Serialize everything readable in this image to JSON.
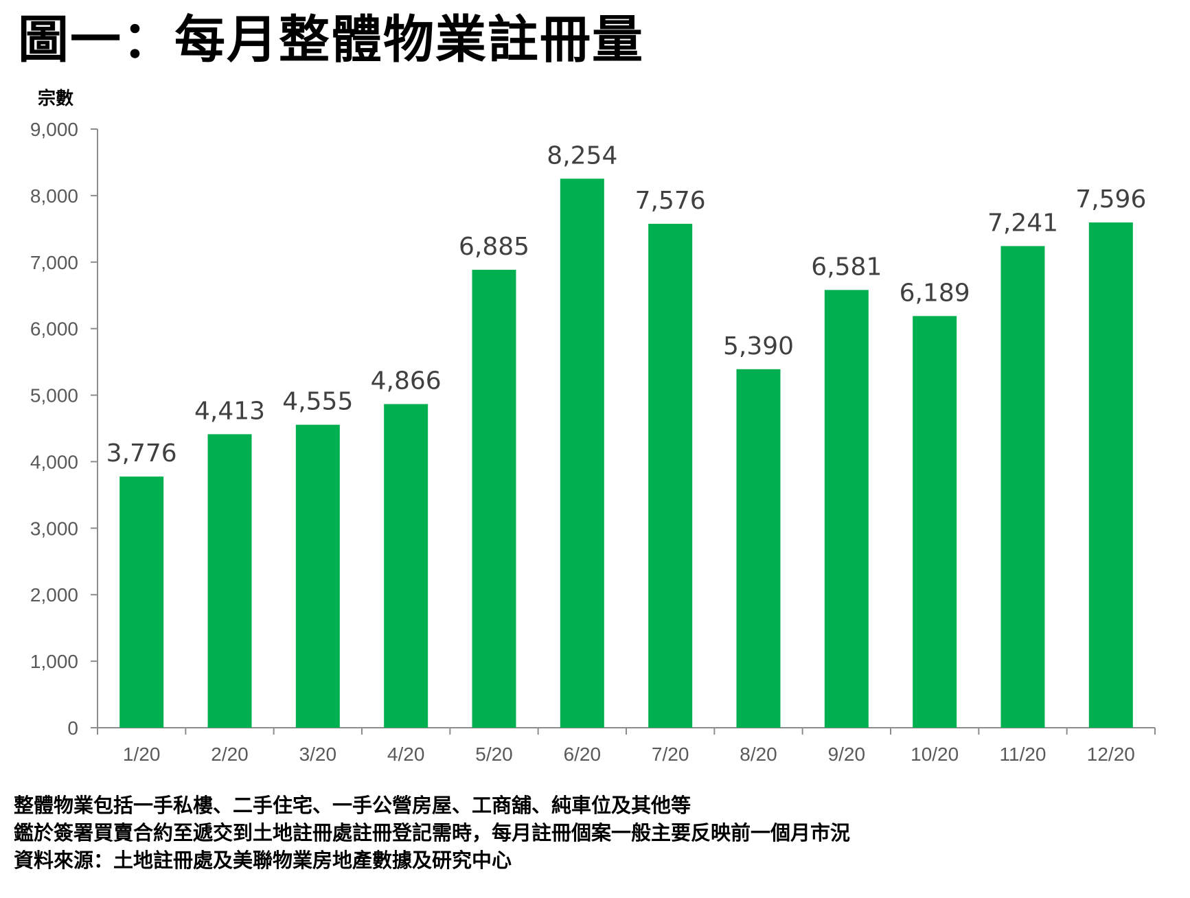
{
  "title": "圖一：每月整體物業註冊量",
  "chart_data": {
    "type": "bar",
    "title": "圖一：每月整體物業註冊量",
    "xlabel": "",
    "ylabel": "宗數",
    "ylim": [
      0,
      9000
    ],
    "yticks": [
      0,
      1000,
      2000,
      3000,
      4000,
      5000,
      6000,
      7000,
      8000,
      9000
    ],
    "ytick_labels": [
      "0",
      "1,000",
      "2,000",
      "3,000",
      "4,000",
      "5,000",
      "6,000",
      "7,000",
      "8,000",
      "9,000"
    ],
    "categories": [
      "1/20",
      "2/20",
      "3/20",
      "4/20",
      "5/20",
      "6/20",
      "7/20",
      "8/20",
      "9/20",
      "10/20",
      "11/20",
      "12/20"
    ],
    "values": [
      3776,
      4413,
      4555,
      4866,
      6885,
      8254,
      7576,
      5390,
      6581,
      6189,
      7241,
      7596
    ],
    "value_labels": [
      "3,776",
      "4,413",
      "4,555",
      "4,866",
      "6,885",
      "8,254",
      "7,576",
      "5,390",
      "6,581",
      "6,189",
      "7,241",
      "7,596"
    ],
    "bar_color": "#00b050",
    "grid": false
  },
  "footnotes": [
    "整體物業包括一手私樓、二手住宅、一手公營房屋、工商舖、純車位及其他等",
    "鑑於簽署買賣合約至遞交到土地註冊處註冊登記需時，每月註冊個案一般主要反映前一個月市況",
    "資料來源：土地註冊處及美聯物業房地產數據及研究中心"
  ]
}
